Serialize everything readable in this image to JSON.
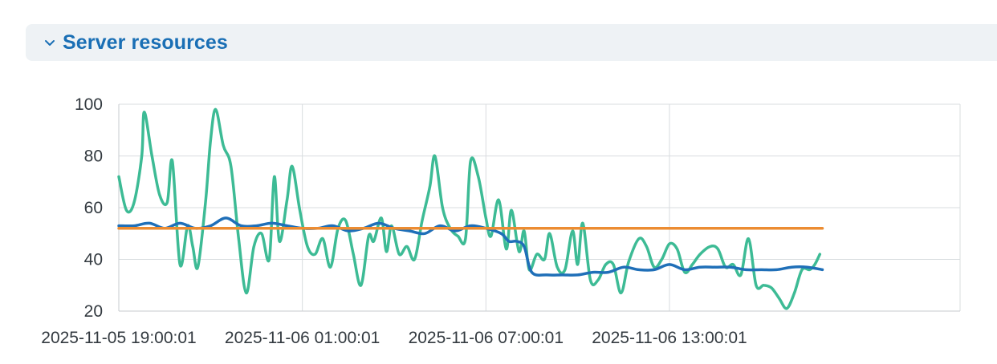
{
  "panel": {
    "title": "Server resources",
    "collapse_icon": "chevron-down-icon",
    "title_color": "#1a6fb5"
  },
  "chart_data": {
    "type": "line",
    "title": "",
    "xlabel": "",
    "ylabel": "",
    "ylim": [
      20,
      100
    ],
    "yticks": [
      20,
      40,
      60,
      80,
      100
    ],
    "xlim": [
      "2025-11-05 19:00:01",
      "2025-11-06 22:30:00"
    ],
    "xticks": [
      "2025-11-05 19:00:01",
      "2025-11-06 01:00:01",
      "2025-11-06 07:00:01",
      "2025-11-06 13:00:01"
    ],
    "grid": true,
    "legend": "none",
    "series": [
      {
        "color": "#3dbb95",
        "points": [
          [
            "2025-11-05 19:00:00",
            72
          ],
          [
            "2025-11-05 19:15:00",
            59
          ],
          [
            "2025-11-05 19:30:00",
            62
          ],
          [
            "2025-11-05 19:45:00",
            80
          ],
          [
            "2025-11-05 19:50:00",
            97
          ],
          [
            "2025-11-05 20:05:00",
            80
          ],
          [
            "2025-11-05 20:20:00",
            65
          ],
          [
            "2025-11-05 20:35:00",
            62
          ],
          [
            "2025-11-05 20:45:00",
            78
          ],
          [
            "2025-11-05 21:00:00",
            38
          ],
          [
            "2025-11-05 21:15:00",
            53
          ],
          [
            "2025-11-05 21:25:00",
            45
          ],
          [
            "2025-11-05 21:35:00",
            37
          ],
          [
            "2025-11-05 21:50:00",
            62
          ],
          [
            "2025-11-05 22:00:00",
            86
          ],
          [
            "2025-11-05 22:10:00",
            98
          ],
          [
            "2025-11-05 22:25:00",
            84
          ],
          [
            "2025-11-05 22:40:00",
            76
          ],
          [
            "2025-11-05 22:55:00",
            48
          ],
          [
            "2025-11-05 23:10:00",
            27
          ],
          [
            "2025-11-05 23:25:00",
            45
          ],
          [
            "2025-11-05 23:40:00",
            50
          ],
          [
            "2025-11-05 23:55:00",
            40
          ],
          [
            "2025-11-06 00:05:00",
            72
          ],
          [
            "2025-11-06 00:15:00",
            47
          ],
          [
            "2025-11-06 00:30:00",
            63
          ],
          [
            "2025-11-06 00:40:00",
            76
          ],
          [
            "2025-11-06 00:55:00",
            59
          ],
          [
            "2025-11-06 01:10:00",
            45
          ],
          [
            "2025-11-06 01:25:00",
            42
          ],
          [
            "2025-11-06 01:40:00",
            48
          ],
          [
            "2025-11-06 01:55:00",
            37
          ],
          [
            "2025-11-06 02:10:00",
            52
          ],
          [
            "2025-11-06 02:25:00",
            55
          ],
          [
            "2025-11-06 02:40:00",
            42
          ],
          [
            "2025-11-06 02:55:00",
            30
          ],
          [
            "2025-11-06 03:10:00",
            49
          ],
          [
            "2025-11-06 03:20:00",
            47
          ],
          [
            "2025-11-06 03:35:00",
            56
          ],
          [
            "2025-11-06 03:45:00",
            43
          ],
          [
            "2025-11-06 03:55:00",
            53
          ],
          [
            "2025-11-06 04:10:00",
            42
          ],
          [
            "2025-11-06 04:25:00",
            45
          ],
          [
            "2025-11-06 04:40:00",
            40
          ],
          [
            "2025-11-06 04:55:00",
            55
          ],
          [
            "2025-11-06 05:10:00",
            68
          ],
          [
            "2025-11-06 05:20:00",
            80
          ],
          [
            "2025-11-06 05:35:00",
            60
          ],
          [
            "2025-11-06 05:50:00",
            52
          ],
          [
            "2025-11-06 06:05:00",
            49
          ],
          [
            "2025-11-06 06:20:00",
            48
          ],
          [
            "2025-11-06 06:30:00",
            78
          ],
          [
            "2025-11-06 06:45:00",
            72
          ],
          [
            "2025-11-06 07:00:00",
            56
          ],
          [
            "2025-11-06 07:10:00",
            49
          ],
          [
            "2025-11-06 07:25:00",
            63
          ],
          [
            "2025-11-06 07:40:00",
            44
          ],
          [
            "2025-11-06 07:50:00",
            59
          ],
          [
            "2025-11-06 08:05:00",
            43
          ],
          [
            "2025-11-06 08:15:00",
            51
          ],
          [
            "2025-11-06 08:25:00",
            36
          ],
          [
            "2025-11-06 08:40:00",
            42
          ],
          [
            "2025-11-06 08:55:00",
            40
          ],
          [
            "2025-11-06 09:05:00",
            50
          ],
          [
            "2025-11-06 09:20:00",
            37
          ],
          [
            "2025-11-06 09:35:00",
            36
          ],
          [
            "2025-11-06 09:50:00",
            51
          ],
          [
            "2025-11-06 10:00:00",
            38
          ],
          [
            "2025-11-06 10:10:00",
            54
          ],
          [
            "2025-11-06 10:25:00",
            32
          ],
          [
            "2025-11-06 10:40:00",
            32
          ],
          [
            "2025-11-06 10:55:00",
            38
          ],
          [
            "2025-11-06 11:10:00",
            38
          ],
          [
            "2025-11-06 11:25:00",
            27
          ],
          [
            "2025-11-06 11:40:00",
            39
          ],
          [
            "2025-11-06 12:00:00",
            48
          ],
          [
            "2025-11-06 12:15:00",
            45
          ],
          [
            "2025-11-06 12:30:00",
            37
          ],
          [
            "2025-11-06 12:45:00",
            40
          ],
          [
            "2025-11-06 13:00:00",
            46
          ],
          [
            "2025-11-06 13:15:00",
            44
          ],
          [
            "2025-11-06 13:30:00",
            35
          ],
          [
            "2025-11-06 13:45:00",
            38
          ],
          [
            "2025-11-06 14:00:00",
            42
          ],
          [
            "2025-11-06 14:20:00",
            45
          ],
          [
            "2025-11-06 14:35:00",
            44
          ],
          [
            "2025-11-06 14:50:00",
            37
          ],
          [
            "2025-11-06 15:05:00",
            38
          ],
          [
            "2025-11-06 15:20:00",
            34
          ],
          [
            "2025-11-06 15:35:00",
            48
          ],
          [
            "2025-11-06 15:50:00",
            30
          ],
          [
            "2025-11-06 16:05:00",
            30
          ],
          [
            "2025-11-06 16:20:00",
            29
          ],
          [
            "2025-11-06 16:35:00",
            25
          ],
          [
            "2025-11-06 16:50:00",
            21
          ],
          [
            "2025-11-06 17:05:00",
            27
          ],
          [
            "2025-11-06 17:20:00",
            36
          ],
          [
            "2025-11-06 17:35:00",
            36
          ],
          [
            "2025-11-06 17:45:00",
            38
          ],
          [
            "2025-11-06 17:55:00",
            42
          ]
        ]
      },
      {
        "color": "#1f6fb8",
        "points": [
          [
            "2025-11-05 19:00:00",
            53
          ],
          [
            "2025-11-05 19:30:00",
            53
          ],
          [
            "2025-11-05 20:00:00",
            54
          ],
          [
            "2025-11-05 20:30:00",
            52
          ],
          [
            "2025-11-05 21:00:00",
            54
          ],
          [
            "2025-11-05 21:30:00",
            52
          ],
          [
            "2025-11-05 22:00:00",
            53
          ],
          [
            "2025-11-05 22:30:00",
            56
          ],
          [
            "2025-11-05 23:00:00",
            53
          ],
          [
            "2025-11-05 23:30:00",
            53
          ],
          [
            "2025-11-06 00:00:00",
            54
          ],
          [
            "2025-11-06 00:30:00",
            53
          ],
          [
            "2025-11-06 01:00:00",
            52
          ],
          [
            "2025-11-06 01:30:00",
            52
          ],
          [
            "2025-11-06 02:00:00",
            53
          ],
          [
            "2025-11-06 02:30:00",
            51
          ],
          [
            "2025-11-06 03:00:00",
            52
          ],
          [
            "2025-11-06 03:30:00",
            54
          ],
          [
            "2025-11-06 04:00:00",
            52
          ],
          [
            "2025-11-06 04:30:00",
            51
          ],
          [
            "2025-11-06 05:00:00",
            50
          ],
          [
            "2025-11-06 05:30:00",
            53
          ],
          [
            "2025-11-06 06:00:00",
            51
          ],
          [
            "2025-11-06 06:30:00",
            53
          ],
          [
            "2025-11-06 07:00:00",
            52
          ],
          [
            "2025-11-06 07:30:00",
            50
          ],
          [
            "2025-11-06 07:45:00",
            47
          ],
          [
            "2025-11-06 08:00:00",
            47
          ],
          [
            "2025-11-06 08:15:00",
            45
          ],
          [
            "2025-11-06 08:30:00",
            35
          ],
          [
            "2025-11-06 09:00:00",
            34
          ],
          [
            "2025-11-06 09:30:00",
            34
          ],
          [
            "2025-11-06 10:00:00",
            34
          ],
          [
            "2025-11-06 10:30:00",
            35
          ],
          [
            "2025-11-06 11:00:00",
            35
          ],
          [
            "2025-11-06 11:30:00",
            37
          ],
          [
            "2025-11-06 12:00:00",
            36
          ],
          [
            "2025-11-06 12:30:00",
            36
          ],
          [
            "2025-11-06 13:00:00",
            38
          ],
          [
            "2025-11-06 13:30:00",
            36
          ],
          [
            "2025-11-06 14:00:00",
            37
          ],
          [
            "2025-11-06 14:30:00",
            37
          ],
          [
            "2025-11-06 15:00:00",
            37
          ],
          [
            "2025-11-06 15:30:00",
            36
          ],
          [
            "2025-11-06 16:00:00",
            36
          ],
          [
            "2025-11-06 16:30:00",
            36
          ],
          [
            "2025-11-06 17:00:00",
            37
          ],
          [
            "2025-11-06 17:30:00",
            37
          ],
          [
            "2025-11-06 18:00:00",
            36
          ]
        ]
      },
      {
        "color": "#ec8c32",
        "points": [
          [
            "2025-11-05 19:00:00",
            52
          ],
          [
            "2025-11-06 18:00:00",
            52
          ]
        ]
      }
    ]
  }
}
